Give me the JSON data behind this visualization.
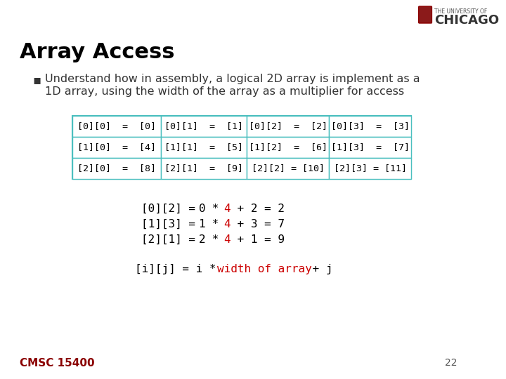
{
  "title": "Array Access",
  "bullet_text_line1": "Understand how in assembly, a logical 2D array is implement as a",
  "bullet_text_line2": "1D array, using the width of the array as a multiplier for access",
  "table": {
    "cells": [
      [
        "[0][0]  =  [0]",
        "[0][1]  =  [1]",
        "[0][2]  =  [2]",
        "[0][3]  =  [3]"
      ],
      [
        "[1][0]  =  [4]",
        "[1][1]  =  [5]",
        "[1][2]  =  [6]",
        "[1][3]  =  [7]"
      ],
      [
        "[2][0]  =  [8]",
        "[2][1]  =  [9]",
        "[2][2] = [10]",
        "[2][3] = [11]"
      ]
    ],
    "border_color": "#4BBFBF",
    "bg_color": "#FFFFFF",
    "text_color": "#000000",
    "font": "monospace"
  },
  "equations": [
    {
      "parts": [
        {
          "text": "[0][2] = ",
          "color": "#000000"
        },
        {
          "text": "0",
          "color": "#000000"
        },
        {
          "text": " * ",
          "color": "#000000"
        },
        {
          "text": "4",
          "color": "#CC0000"
        },
        {
          "text": " + 2 = 2",
          "color": "#000000"
        }
      ]
    },
    {
      "parts": [
        {
          "text": "[1][3] = ",
          "color": "#000000"
        },
        {
          "text": "1",
          "color": "#000000"
        },
        {
          "text": " * ",
          "color": "#000000"
        },
        {
          "text": "4",
          "color": "#CC0000"
        },
        {
          "text": " + 3 = 7",
          "color": "#000000"
        }
      ]
    },
    {
      "parts": [
        {
          "text": "[2][1] = ",
          "color": "#000000"
        },
        {
          "text": "2",
          "color": "#000000"
        },
        {
          "text": " * ",
          "color": "#000000"
        },
        {
          "text": "4",
          "color": "#CC0000"
        },
        {
          "text": " + 1 = 9",
          "color": "#000000"
        }
      ]
    }
  ],
  "formula_parts": [
    {
      "text": "[i][j] = i * ",
      "color": "#000000"
    },
    {
      "text": "width of array",
      "color": "#CC0000"
    },
    {
      "text": " + j",
      "color": "#000000"
    }
  ],
  "footer_text": "CMSC 15400",
  "footer_color": "#8B0000",
  "page_number": "22",
  "bg_color": "#FFFFFF",
  "title_color": "#000000",
  "title_fontsize": 22,
  "bullet_fontsize": 11.5,
  "eq_fontsize": 11.5,
  "formula_fontsize": 11.5,
  "footer_fontsize": 11
}
